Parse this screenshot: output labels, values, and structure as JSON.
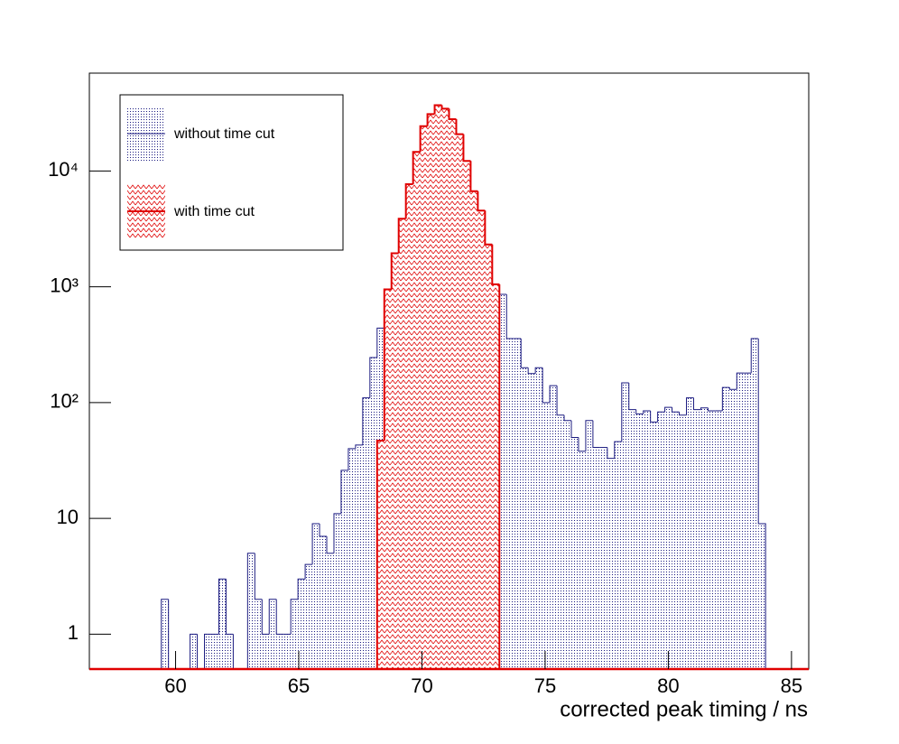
{
  "chart_data": {
    "type": "histogram",
    "x_label": "corrected peak timing / ns",
    "xlim": [
      56.5,
      85.7
    ],
    "ylim": [
      0.5,
      70000
    ],
    "log_y": true,
    "xticks": [
      60,
      65,
      70,
      75,
      80,
      85
    ],
    "yticks": [
      1,
      10,
      {
        "value": 100,
        "label": "10²"
      },
      {
        "value": 1000,
        "label": "10³"
      },
      {
        "value": 10000,
        "label": "10⁴"
      }
    ],
    "legend": "upper left",
    "bins": [
      59.42,
      59.712,
      60.004,
      60.296,
      60.588,
      60.88,
      61.172,
      61.464,
      61.756,
      62.048,
      62.34,
      62.632,
      62.924,
      63.216,
      63.508,
      63.8,
      64.092,
      64.384,
      64.676,
      64.968,
      65.26,
      65.552,
      65.844,
      66.136,
      66.428,
      66.72,
      67.012,
      67.304,
      67.596,
      67.888,
      68.18,
      68.472,
      68.764,
      69.056,
      69.348,
      69.64,
      69.932,
      70.224,
      70.516,
      70.808,
      71.1,
      71.392,
      71.684,
      71.976,
      72.268,
      72.56,
      72.852,
      73.144,
      73.436,
      73.728,
      74.02,
      74.312,
      74.604,
      74.896,
      75.188,
      75.48,
      75.772,
      76.064,
      76.356,
      76.648,
      76.94,
      77.232,
      77.524,
      77.816,
      78.108,
      78.4,
      78.692,
      78.984,
      79.276,
      79.568,
      79.86,
      80.152,
      80.444,
      80.736,
      81.028,
      81.32,
      81.612,
      81.904,
      82.196,
      82.488,
      82.78,
      83.072,
      83.364,
      83.656,
      83.948
    ],
    "series": [
      {
        "name": "without time cut",
        "color": "#1a1a80",
        "fill": "dots",
        "values": [
          2,
          0,
          0,
          0,
          1,
          0,
          1,
          1,
          3,
          1,
          0,
          0,
          5,
          2,
          1,
          2,
          1,
          1,
          2,
          3,
          4,
          9,
          7,
          5,
          11,
          26,
          40,
          43,
          110,
          245,
          440,
          950,
          1950,
          3870,
          7700,
          14600,
          24400,
          31000,
          37000,
          34500,
          28000,
          20800,
          12200,
          6700,
          4550,
          2320,
          1050,
          860,
          357,
          357,
          200,
          178,
          200,
          100,
          140,
          78,
          70,
          50,
          38,
          70,
          41,
          41,
          33,
          46,
          148,
          87,
          80,
          85,
          68,
          83,
          91,
          83,
          78,
          110,
          87,
          90,
          85,
          85,
          135,
          130,
          180,
          180,
          357,
          9
        ]
      },
      {
        "name": "with time cut",
        "color": "#e00000",
        "fill": "hatch",
        "values": [
          0,
          0,
          0,
          0,
          0,
          0,
          0,
          0,
          0,
          0,
          0,
          0,
          0,
          0,
          0,
          0,
          0,
          0,
          0,
          0,
          0,
          0,
          0,
          0,
          0,
          0,
          0,
          0,
          0,
          0,
          47,
          950,
          1950,
          3870,
          7700,
          14600,
          24400,
          31000,
          37000,
          34500,
          28000,
          20800,
          12200,
          6700,
          4550,
          2320,
          1050,
          0,
          0,
          0,
          0,
          0,
          0,
          0,
          0,
          0,
          0,
          0,
          0,
          0,
          0,
          0,
          0,
          0,
          0,
          0,
          0,
          0,
          0,
          0,
          0,
          0,
          0,
          0,
          0,
          0,
          0,
          0,
          0,
          0,
          0,
          0,
          0,
          0
        ]
      }
    ]
  }
}
